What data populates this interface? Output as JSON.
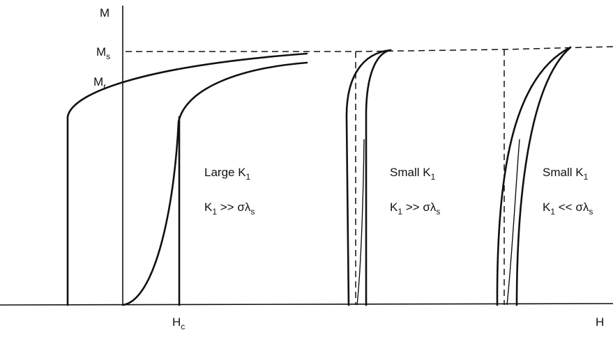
{
  "axes": {
    "y_label": "M",
    "x_label": "H"
  },
  "markers": {
    "saturation": {
      "text": "M",
      "sub": "s"
    },
    "remanence": {
      "text": "M",
      "sub": "r"
    },
    "coercivity": {
      "text": "H",
      "sub": "c"
    }
  },
  "panels": [
    {
      "title": {
        "text": "Large K",
        "sub": "1"
      },
      "condition": [
        {
          "text": "K",
          "sub": "1"
        },
        {
          "text": " >> σλ",
          "sub": "s"
        }
      ]
    },
    {
      "title": {
        "text": "Small K",
        "sub": "1"
      },
      "condition": [
        {
          "text": "K",
          "sub": "1"
        },
        {
          "text": " >> σλ",
          "sub": "s"
        }
      ]
    },
    {
      "title": {
        "text": "Small K",
        "sub": "1"
      },
      "condition": [
        {
          "text": "K",
          "sub": "1"
        },
        {
          "text": " << σλ",
          "sub": "s"
        }
      ]
    }
  ]
}
